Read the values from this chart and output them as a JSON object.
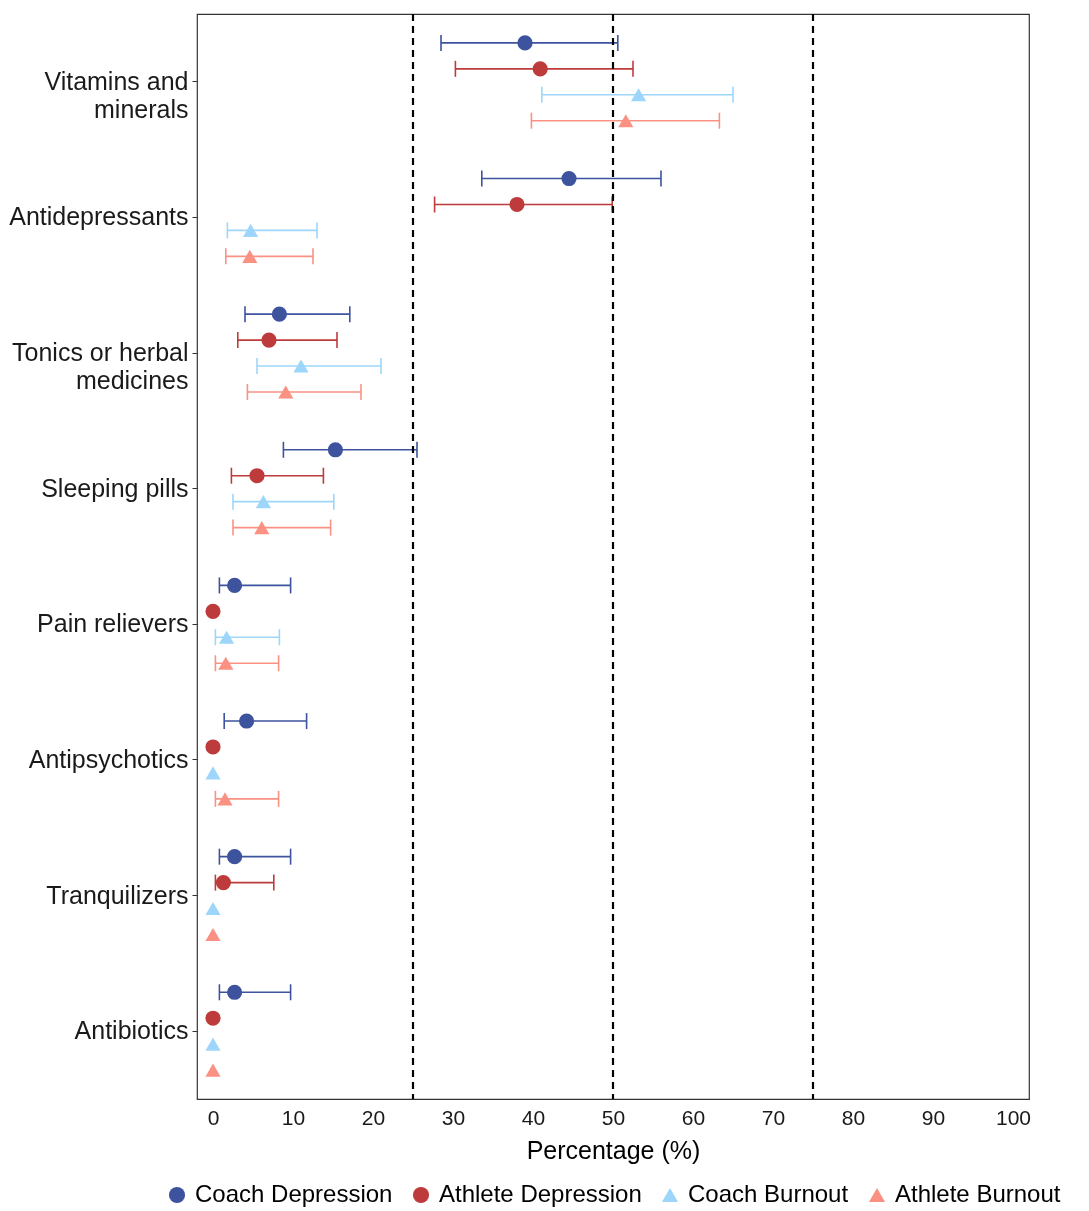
{
  "chart_data": {
    "type": "scatter",
    "orientation": "horizontal",
    "categories": [
      "Vitamins and minerals",
      "Antidepressants",
      "Tonics or herbal medicines",
      "Sleeping pills",
      "Pain relievers",
      "Antipsychotics",
      "Tranquilizers",
      "Antibiotics"
    ],
    "series": [
      {
        "name": "Coach Depression",
        "color": "#3d539e",
        "marker": "circle",
        "values": [
          39,
          44.5,
          8.3,
          15.3,
          2.7,
          4.2,
          2.7,
          2.7
        ],
        "errors": [
          [
            28.5,
            50.6
          ],
          [
            33.6,
            56
          ],
          [
            4,
            17.1
          ],
          [
            8.8,
            25.5
          ],
          [
            0.8,
            9.7
          ],
          [
            1.4,
            11.7
          ],
          [
            0.8,
            9.7
          ],
          [
            0.8,
            9.7
          ]
        ]
      },
      {
        "name": "Athlete Depression",
        "color": "#be3b3c",
        "marker": "circle",
        "values": [
          40.9,
          38,
          7,
          5.5,
          0,
          0,
          1.3,
          0
        ],
        "errors": [
          [
            30.3,
            52.5
          ],
          [
            27.7,
            49.9
          ],
          [
            3.1,
            15.5
          ],
          [
            2.3,
            13.8
          ],
          null,
          null,
          [
            0.3,
            7.6
          ],
          null
        ]
      },
      {
        "name": "Coach Burnout",
        "color": "#9dd6fa",
        "marker": "triangle",
        "values": [
          53.2,
          4.7,
          11,
          6.3,
          1.7,
          0,
          0,
          0
        ],
        "errors": [
          [
            41.1,
            65
          ],
          [
            1.8,
            13
          ],
          [
            5.5,
            21
          ],
          [
            2.5,
            15.1
          ],
          [
            0.3,
            8.3
          ],
          null,
          null,
          null
        ]
      },
      {
        "name": "Athlete Burnout",
        "color": "#fa9183",
        "marker": "triangle",
        "values": [
          51.6,
          4.6,
          9.1,
          6.1,
          1.6,
          1.5,
          0,
          0
        ],
        "errors": [
          [
            39.8,
            63.3
          ],
          [
            1.6,
            12.5
          ],
          [
            4.3,
            18.5
          ],
          [
            2.5,
            14.7
          ],
          [
            0.3,
            8.2
          ],
          [
            0.3,
            8.2
          ],
          null,
          null
        ]
      }
    ],
    "xlabel": "Percentage (%)",
    "xlim": [
      -2,
      102
    ],
    "xticks": [
      0,
      10,
      20,
      30,
      40,
      50,
      60,
      70,
      80,
      90,
      100
    ],
    "ref_lines": [
      {
        "axis": "x",
        "value": 25,
        "color": "#000000",
        "line_style": "dashed"
      },
      {
        "axis": "x",
        "value": 50,
        "color": "#000000",
        "line_style": "dashed"
      },
      {
        "axis": "x",
        "value": 75,
        "color": "#000000",
        "line_style": "dashed"
      }
    ],
    "legend": "bottom"
  }
}
